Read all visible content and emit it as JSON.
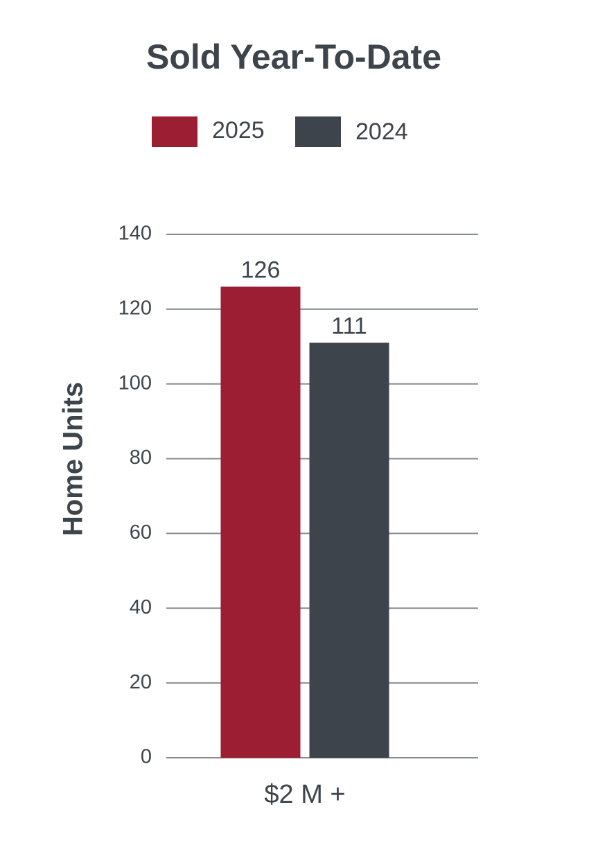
{
  "chart_data": {
    "type": "bar",
    "title": "Sold Year-To-Date",
    "y_label": "Home Units",
    "categories": [
      "$2 M +"
    ],
    "series": [
      {
        "name": "2025",
        "color": "#9b1e33",
        "values": [
          126
        ]
      },
      {
        "name": "2024",
        "color": "#3d444b",
        "values": [
          111
        ]
      }
    ],
    "ylim": [
      0,
      140
    ],
    "yticks": [
      0,
      20,
      40,
      60,
      80,
      100,
      120,
      140
    ],
    "grid": true
  }
}
